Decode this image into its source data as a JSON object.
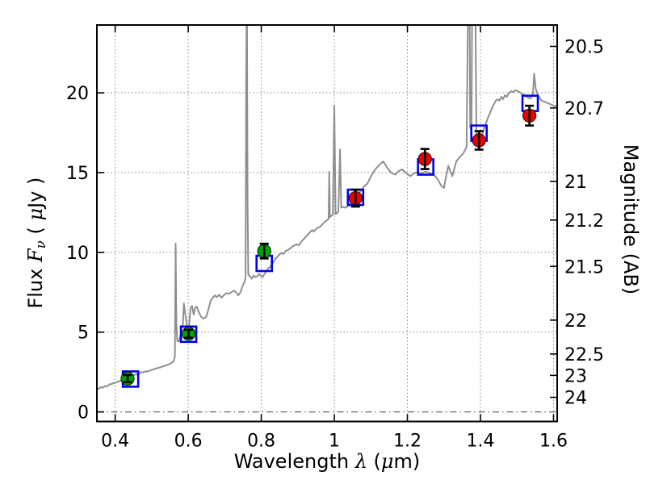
{
  "chart_data": {
    "type": "line",
    "description": "Galaxy SED: gray model spectrum with observed photometry (green/red filled circles with error bars) and model photometry (open blue squares)",
    "xlabel": "Wavelength λ (μm)",
    "ylabel_left": "Flux Fν ( μJy )",
    "ylabel_right": "Magnitude (AB)",
    "xlabel_parts": [
      {
        "text": "Wavelength  ",
        "style": "plain"
      },
      {
        "text": "λ",
        "style": "math"
      },
      {
        "text": " (",
        "style": "plain"
      },
      {
        "text": "μ",
        "style": "math"
      },
      {
        "text": "m)",
        "style": "plain"
      }
    ],
    "ylabel_left_parts": [
      {
        "text": "Flux  ",
        "style": "plain"
      },
      {
        "text": "F",
        "style": "math"
      },
      {
        "text": "ν",
        "style": "math-sub"
      },
      {
        "text": "  ( ",
        "style": "plain"
      },
      {
        "text": "μ",
        "style": "math"
      },
      {
        "text": "Jy )",
        "style": "plain"
      }
    ],
    "axes": {
      "xlim": [
        0.35,
        1.61
      ],
      "ylim": [
        -0.6,
        24.25
      ],
      "x_ticks": {
        "values": [
          0.4,
          0.6,
          0.8,
          1.0,
          1.2,
          1.4,
          1.6
        ],
        "labels": [
          "0.4",
          "0.6",
          "0.8",
          "1",
          "1.2",
          "1.4",
          "1.6"
        ]
      },
      "y_ticks_left": {
        "values": [
          0,
          5,
          10,
          15,
          20
        ],
        "labels": [
          "0",
          "5",
          "10",
          "15",
          "20"
        ]
      },
      "y_ticks_right": {
        "labels": [
          "20.5",
          "20.7",
          "21",
          "21.2",
          "21.5",
          "22",
          "22.5",
          "23",
          "24"
        ],
        "flux_positions": [
          22.909,
          19.055,
          14.454,
          12.023,
          9.12,
          5.754,
          3.631,
          2.291,
          0.912
        ]
      },
      "grid": {
        "x_values": [
          0.4,
          0.6,
          0.8,
          1.0,
          1.2,
          1.4,
          1.6
        ],
        "y_values": [
          5,
          10,
          15,
          20
        ],
        "zero_line_y": 0
      }
    },
    "series": [
      {
        "name": "model-spectrum",
        "type": "line",
        "color": "#8F8F8F",
        "linewidth": 2,
        "points": [
          [
            0.35,
            1.5
          ],
          [
            0.355,
            1.45
          ],
          [
            0.36,
            1.55
          ],
          [
            0.366,
            1.52
          ],
          [
            0.372,
            1.62
          ],
          [
            0.378,
            1.6
          ],
          [
            0.384,
            1.72
          ],
          [
            0.39,
            1.75
          ],
          [
            0.396,
            1.8
          ],
          [
            0.402,
            1.84
          ],
          [
            0.408,
            1.9
          ],
          [
            0.414,
            1.95
          ],
          [
            0.42,
            2.0
          ],
          [
            0.426,
            2.05
          ],
          [
            0.432,
            2.1
          ],
          [
            0.438,
            2.14
          ],
          [
            0.444,
            2.2
          ],
          [
            0.45,
            2.28
          ],
          [
            0.456,
            2.36
          ],
          [
            0.461,
            2.33
          ],
          [
            0.467,
            2.42
          ],
          [
            0.472,
            2.5
          ],
          [
            0.477,
            2.47
          ],
          [
            0.483,
            2.55
          ],
          [
            0.489,
            2.53
          ],
          [
            0.495,
            2.6
          ],
          [
            0.501,
            2.63
          ],
          [
            0.507,
            2.68
          ],
          [
            0.513,
            2.73
          ],
          [
            0.519,
            2.77
          ],
          [
            0.525,
            2.8
          ],
          [
            0.531,
            2.86
          ],
          [
            0.537,
            2.9
          ],
          [
            0.543,
            2.95
          ],
          [
            0.549,
            3.0
          ],
          [
            0.555,
            3.08
          ],
          [
            0.56,
            3.18
          ],
          [
            0.5635,
            3.45
          ],
          [
            0.5655,
            10.55
          ],
          [
            0.5675,
            5.6
          ],
          [
            0.57,
            4.45
          ],
          [
            0.574,
            4.4
          ],
          [
            0.578,
            4.7
          ],
          [
            0.582,
            5.3
          ],
          [
            0.5855,
            5.5
          ],
          [
            0.588,
            6.8
          ],
          [
            0.591,
            6.3
          ],
          [
            0.5945,
            5.7
          ],
          [
            0.598,
            5.1
          ],
          [
            0.602,
            5.35
          ],
          [
            0.6065,
            6.5
          ],
          [
            0.6105,
            6.65
          ],
          [
            0.615,
            6.1
          ],
          [
            0.619,
            6.55
          ],
          [
            0.6235,
            6.6
          ],
          [
            0.629,
            6.25
          ],
          [
            0.6355,
            5.95
          ],
          [
            0.642,
            5.85
          ],
          [
            0.649,
            5.95
          ],
          [
            0.655,
            6.4
          ],
          [
            0.661,
            6.95
          ],
          [
            0.667,
            7.15
          ],
          [
            0.673,
            7.3
          ],
          [
            0.679,
            7.2
          ],
          [
            0.685,
            7.35
          ],
          [
            0.691,
            7.15
          ],
          [
            0.697,
            7.3
          ],
          [
            0.704,
            7.45
          ],
          [
            0.711,
            7.4
          ],
          [
            0.718,
            7.5
          ],
          [
            0.725,
            7.6
          ],
          [
            0.731,
            7.5
          ],
          [
            0.737,
            7.3
          ],
          [
            0.743,
            7.5
          ],
          [
            0.749,
            7.9
          ],
          [
            0.754,
            8.15
          ],
          [
            0.757,
            8.4
          ],
          [
            0.7585,
            20.0
          ],
          [
            0.7595,
            24.3
          ],
          [
            0.761,
            24.3
          ],
          [
            0.7625,
            13.0
          ],
          [
            0.7645,
            8.6
          ],
          [
            0.769,
            8.5
          ],
          [
            0.774,
            8.35
          ],
          [
            0.779,
            8.55
          ],
          [
            0.784,
            8.45
          ],
          [
            0.789,
            8.5
          ],
          [
            0.794,
            8.65
          ],
          [
            0.799,
            8.55
          ],
          [
            0.804,
            8.45
          ],
          [
            0.809,
            8.65
          ],
          [
            0.814,
            8.8
          ],
          [
            0.819,
            9.0
          ],
          [
            0.825,
            9.1
          ],
          [
            0.831,
            9.3
          ],
          [
            0.837,
            9.55
          ],
          [
            0.843,
            9.7
          ],
          [
            0.849,
            9.85
          ],
          [
            0.855,
            9.95
          ],
          [
            0.861,
            9.9
          ],
          [
            0.867,
            10.1
          ],
          [
            0.873,
            10.15
          ],
          [
            0.879,
            10.25
          ],
          [
            0.885,
            10.35
          ],
          [
            0.891,
            10.45
          ],
          [
            0.897,
            10.5
          ],
          [
            0.903,
            10.45
          ],
          [
            0.909,
            10.65
          ],
          [
            0.915,
            10.8
          ],
          [
            0.921,
            10.95
          ],
          [
            0.927,
            11.1
          ],
          [
            0.933,
            11.25
          ],
          [
            0.939,
            11.4
          ],
          [
            0.944,
            11.3
          ],
          [
            0.949,
            11.45
          ],
          [
            0.955,
            11.55
          ],
          [
            0.961,
            11.6
          ],
          [
            0.967,
            11.75
          ],
          [
            0.973,
            11.9
          ],
          [
            0.979,
            12.0
          ],
          [
            0.9845,
            12.1
          ],
          [
            0.986,
            15.05
          ],
          [
            0.988,
            12.2
          ],
          [
            0.992,
            12.3
          ],
          [
            0.996,
            12.35
          ],
          [
            1.0,
            19.2
          ],
          [
            1.0035,
            12.4
          ],
          [
            1.007,
            12.45
          ],
          [
            1.011,
            12.55
          ],
          [
            1.0155,
            16.45
          ],
          [
            1.019,
            12.8
          ],
          [
            1.024,
            12.85
          ],
          [
            1.03,
            12.8
          ],
          [
            1.0345,
            12.85
          ],
          [
            1.04,
            13.0
          ],
          [
            1.048,
            13.2
          ],
          [
            1.057,
            13.4
          ],
          [
            1.066,
            13.65
          ],
          [
            1.075,
            13.95
          ],
          [
            1.082,
            14.15
          ],
          [
            1.09,
            14.3
          ],
          [
            1.1,
            14.75
          ],
          [
            1.112,
            15.2
          ],
          [
            1.124,
            15.5
          ],
          [
            1.134,
            15.7
          ],
          [
            1.145,
            15.3
          ],
          [
            1.155,
            15.0
          ],
          [
            1.167,
            14.87
          ],
          [
            1.176,
            15.1
          ],
          [
            1.186,
            15.2
          ],
          [
            1.197,
            14.95
          ],
          [
            1.208,
            14.78
          ],
          [
            1.218,
            14.95
          ],
          [
            1.227,
            15.03
          ],
          [
            1.237,
            14.95
          ],
          [
            1.248,
            15.05
          ],
          [
            1.258,
            15.0
          ],
          [
            1.27,
            14.9
          ],
          [
            1.282,
            14.62
          ],
          [
            1.292,
            14.2
          ],
          [
            1.3,
            14.03
          ],
          [
            1.306,
            14.8
          ],
          [
            1.312,
            15.43
          ],
          [
            1.318,
            15.05
          ],
          [
            1.323,
            14.78
          ],
          [
            1.329,
            15.3
          ],
          [
            1.334,
            15.7
          ],
          [
            1.342,
            15.95
          ],
          [
            1.353,
            16.2
          ],
          [
            1.362,
            16.6
          ],
          [
            1.3655,
            24.3
          ],
          [
            1.3705,
            24.3
          ],
          [
            1.372,
            17.8
          ],
          [
            1.3755,
            17.8
          ],
          [
            1.377,
            24.3
          ],
          [
            1.3865,
            24.3
          ],
          [
            1.389,
            17.3
          ],
          [
            1.394,
            16.95
          ],
          [
            1.399,
            16.9
          ],
          [
            1.405,
            17.4
          ],
          [
            1.412,
            17.9
          ],
          [
            1.42,
            18.4
          ],
          [
            1.428,
            18.85
          ],
          [
            1.435,
            19.2
          ],
          [
            1.442,
            19.5
          ],
          [
            1.447,
            19.6
          ],
          [
            1.452,
            19.5
          ],
          [
            1.457,
            19.75
          ],
          [
            1.462,
            19.6
          ],
          [
            1.467,
            19.85
          ],
          [
            1.472,
            19.75
          ],
          [
            1.478,
            20.0
          ],
          [
            1.484,
            20.1
          ],
          [
            1.49,
            20.05
          ],
          [
            1.496,
            20.15
          ],
          [
            1.503,
            20.1
          ],
          [
            1.51,
            20.0
          ],
          [
            1.517,
            19.9
          ],
          [
            1.524,
            19.8
          ],
          [
            1.53,
            19.7
          ],
          [
            1.537,
            19.65
          ],
          [
            1.5435,
            19.9
          ],
          [
            1.547,
            21.2
          ],
          [
            1.551,
            20.3
          ],
          [
            1.556,
            19.9
          ],
          [
            1.561,
            19.7
          ],
          [
            1.568,
            19.5
          ],
          [
            1.575,
            19.45
          ],
          [
            1.582,
            19.38
          ],
          [
            1.59,
            19.3
          ],
          [
            1.6,
            19.2
          ],
          [
            1.6097,
            19.15
          ]
        ]
      },
      {
        "name": "model-photometry-squares",
        "type": "scatter",
        "marker": "open-square",
        "color": "#0000EE",
        "marker_size": 19,
        "points": [
          {
            "x": 0.442,
            "y": 2.06
          },
          {
            "x": 0.601,
            "y": 4.87
          },
          {
            "x": 0.808,
            "y": 9.31
          },
          {
            "x": 1.058,
            "y": 13.45
          },
          {
            "x": 1.25,
            "y": 15.35
          },
          {
            "x": 1.396,
            "y": 17.47
          },
          {
            "x": 1.536,
            "y": 19.34
          }
        ]
      },
      {
        "name": "observed-photometry-optical",
        "type": "scatter",
        "marker": "filled-circle",
        "color": "#00A300",
        "errorbar_color": "#000000",
        "points": [
          {
            "x": 0.434,
            "y": 2.09,
            "yerr": 0.22
          },
          {
            "x": 0.601,
            "y": 4.9,
            "yerr": 0.25
          },
          {
            "x": 0.808,
            "y": 10.08,
            "yerr": 0.46
          }
        ]
      },
      {
        "name": "observed-photometry-infrared",
        "type": "scatter",
        "marker": "filled-circle",
        "color": "#EE0000",
        "errorbar_color": "#000000",
        "points": [
          {
            "x": 1.058,
            "y": 13.4,
            "yerr": 0.53
          },
          {
            "x": 1.248,
            "y": 15.85,
            "yerr": 0.63
          },
          {
            "x": 1.396,
            "y": 17.02,
            "yerr": 0.58
          },
          {
            "x": 1.534,
            "y": 18.57,
            "yerr": 0.62
          }
        ]
      }
    ],
    "style": {
      "spine_color": "#000000",
      "grid_color": "#888888",
      "tick_label_size": 22,
      "background": "#ffffff"
    }
  }
}
